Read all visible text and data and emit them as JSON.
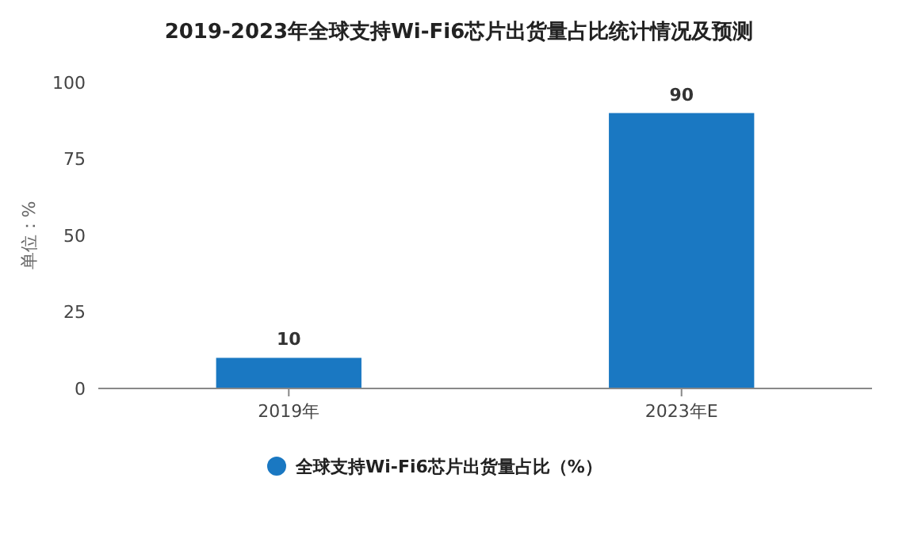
{
  "chart_data": {
    "type": "bar",
    "title": "2019-2023年全球支持Wi-Fi6芯片出货量占比统计情况及预测",
    "ylabel": "单位：%",
    "categories": [
      "2019年",
      "2023年E"
    ],
    "series": [
      {
        "name": "全球支持Wi-Fi6芯片出货量占比（%）",
        "color": "#1a78c2",
        "values": [
          10,
          90
        ]
      }
    ],
    "ylim": [
      0,
      100
    ],
    "yticks": [
      0,
      25,
      50,
      75,
      100
    ],
    "data_labels": true,
    "legend": "bottom"
  }
}
